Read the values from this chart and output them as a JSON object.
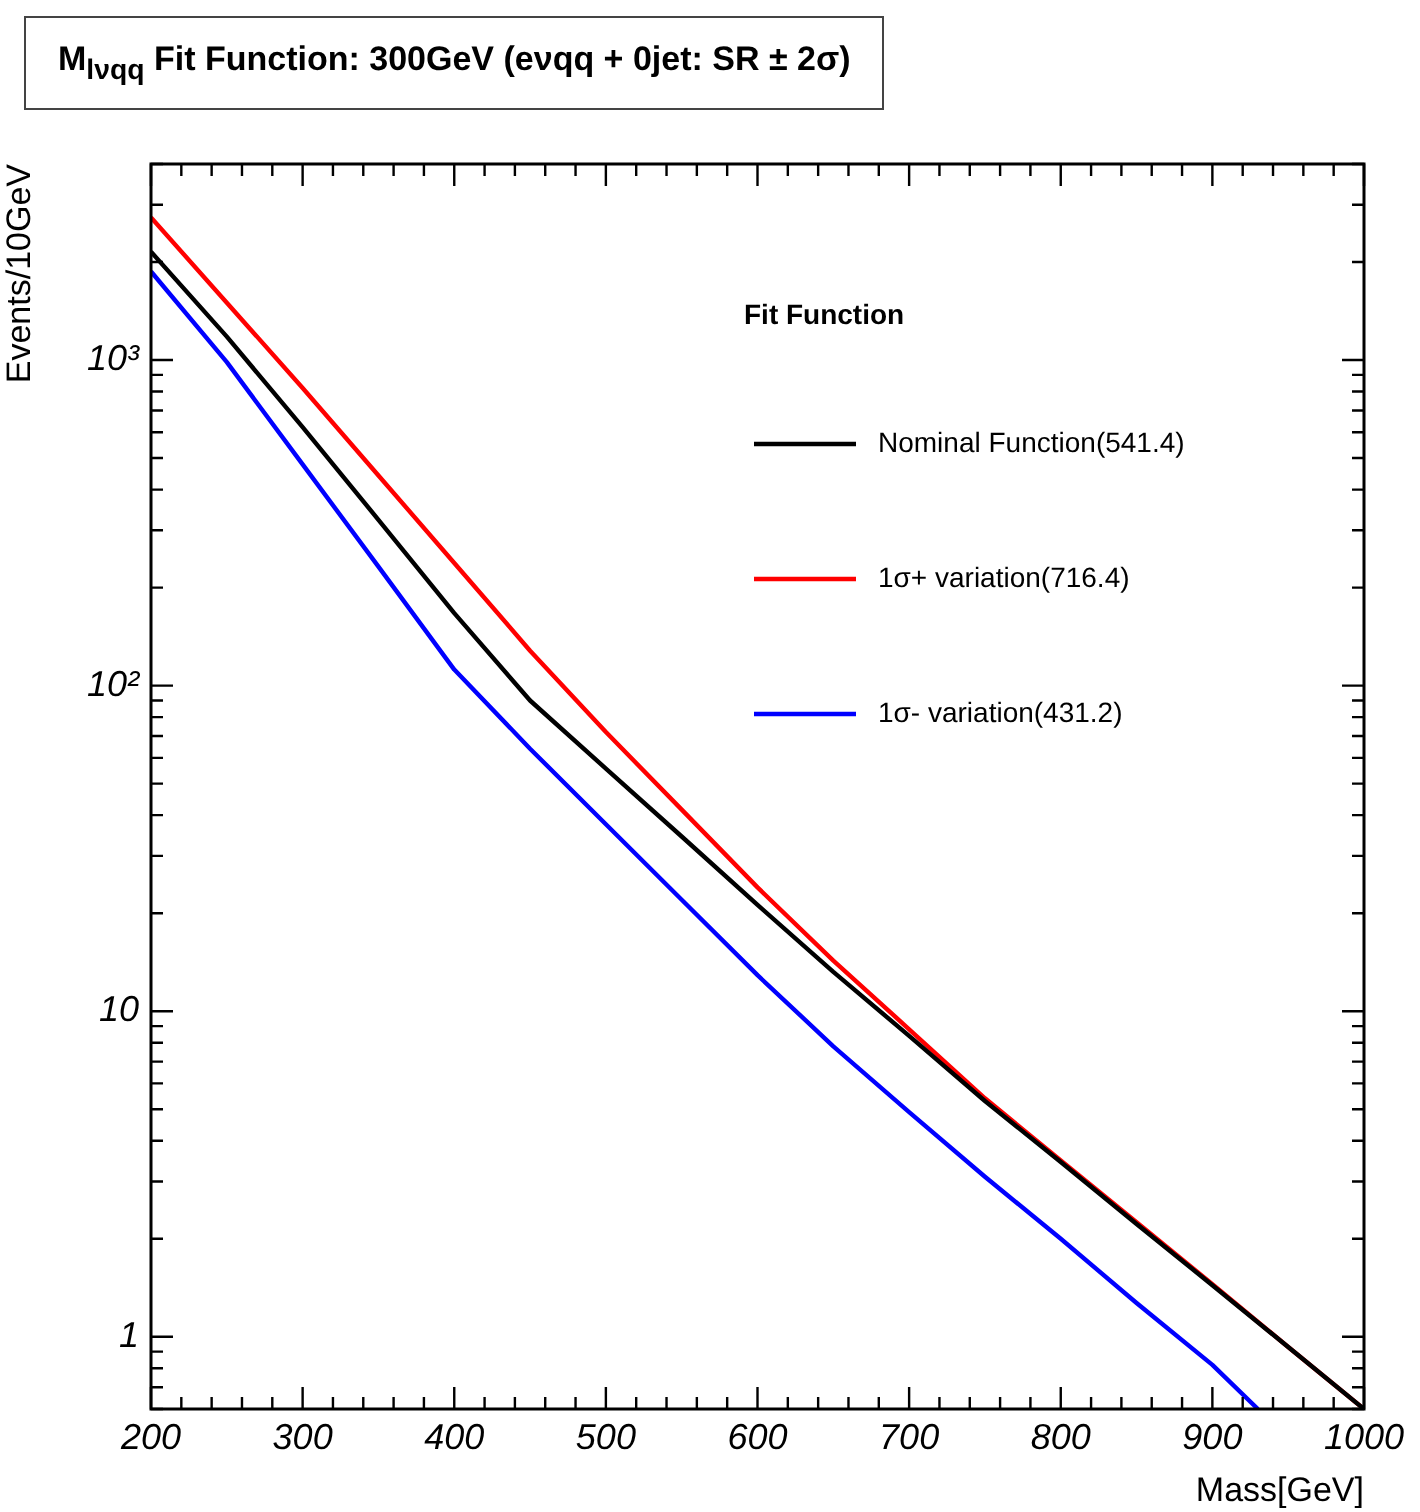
{
  "chart_data": {
    "type": "line",
    "title": "M$_{lνqq}$ Fit Function: 300GeV (eνqq + 0jet: SR ± 2σ)",
    "xlabel": "Mass[GeV]",
    "ylabel": "Events/10GeV",
    "legend_title": "Fit Function",
    "legend": "top right",
    "log": "y",
    "grid": false,
    "marker": "none",
    "line_style": "solid",
    "x": [
      200,
      250,
      300,
      350,
      400,
      450,
      500,
      550,
      600,
      650,
      700,
      750,
      800,
      850,
      900,
      950,
      1000
    ],
    "xlim": [
      200,
      1000
    ],
    "ylim": [
      0.6,
      4000
    ],
    "xticks": [
      200,
      {
        "value": 220,
        "label": null
      },
      {
        "value": 240,
        "label": null
      },
      {
        "value": 260,
        "label": null
      },
      {
        "value": 280,
        "label": null
      },
      300,
      {
        "value": 320,
        "label": null
      },
      {
        "value": 340,
        "label": null
      },
      {
        "value": 360,
        "label": null
      },
      {
        "value": 380,
        "label": null
      },
      400,
      {
        "value": 420,
        "label": null
      },
      {
        "value": 440,
        "label": null
      },
      {
        "value": 460,
        "label": null
      },
      {
        "value": 480,
        "label": null
      },
      500,
      {
        "value": 520,
        "label": null
      },
      {
        "value": 540,
        "label": null
      },
      {
        "value": 560,
        "label": null
      },
      {
        "value": 580,
        "label": null
      },
      600,
      {
        "value": 620,
        "label": null
      },
      {
        "value": 640,
        "label": null
      },
      {
        "value": 660,
        "label": null
      },
      {
        "value": 680,
        "label": null
      },
      700,
      {
        "value": 720,
        "label": null
      },
      {
        "value": 740,
        "label": null
      },
      {
        "value": 760,
        "label": null
      },
      {
        "value": 780,
        "label": null
      },
      800,
      {
        "value": 820,
        "label": null
      },
      {
        "value": 840,
        "label": null
      },
      {
        "value": 860,
        "label": null
      },
      {
        "value": 880,
        "label": null
      },
      900,
      {
        "value": 920,
        "label": null
      },
      {
        "value": 940,
        "label": null
      },
      {
        "value": 960,
        "label": null
      },
      {
        "value": 980,
        "label": null
      },
      1000
    ],
    "yticks": [
      {
        "value": 0.6,
        "label": null
      },
      {
        "value": 0.7,
        "label": null
      },
      {
        "value": 0.8,
        "label": null
      },
      {
        "value": 0.9,
        "label": null
      },
      1,
      {
        "value": 2,
        "label": null
      },
      {
        "value": 3,
        "label": null
      },
      {
        "value": 4,
        "label": null
      },
      {
        "value": 5,
        "label": null
      },
      {
        "value": 6,
        "label": null
      },
      {
        "value": 7,
        "label": null
      },
      {
        "value": 8,
        "label": null
      },
      {
        "value": 9,
        "label": null
      },
      10,
      {
        "value": 20,
        "label": null
      },
      {
        "value": 30,
        "label": null
      },
      {
        "value": 40,
        "label": null
      },
      {
        "value": 50,
        "label": null
      },
      {
        "value": 60,
        "label": null
      },
      {
        "value": 70,
        "label": null
      },
      {
        "value": 80,
        "label": null
      },
      {
        "value": 90,
        "label": null
      },
      {
        "value": 100,
        "label": "10²"
      },
      {
        "value": 200,
        "label": null
      },
      {
        "value": 300,
        "label": null
      },
      {
        "value": 400,
        "label": null
      },
      {
        "value": 500,
        "label": null
      },
      {
        "value": 600,
        "label": null
      },
      {
        "value": 700,
        "label": null
      },
      {
        "value": 800,
        "label": null
      },
      {
        "value": 900,
        "label": null
      },
      {
        "value": 1000,
        "label": "10³"
      },
      {
        "value": 2000,
        "label": null
      },
      {
        "value": 3000,
        "label": null
      },
      {
        "value": 4000,
        "label": null
      }
    ],
    "series": [
      {
        "name": "Nominal Function(541.4)",
        "color": "#000000",
        "values": [
          2150,
          1180,
          622,
          323,
          167,
          90,
          55.6,
          34.4,
          21.2,
          13.2,
          8.4,
          5.3,
          3.44,
          2.22,
          1.44,
          0.93,
          0.6
        ]
      },
      {
        "name": "1σ+ variation(716.4)",
        "color": "#ff0000",
        "values": [
          2740,
          1500,
          820,
          442,
          238,
          128,
          72,
          41.6,
          24,
          14.3,
          8.8,
          5.4,
          3.48,
          2.25,
          1.45,
          0.93,
          0.6
        ]
      },
      {
        "name": "1σ- variation(431.2)",
        "color": "#0000ff",
        "x": [
          200,
          250,
          300,
          350,
          400,
          450,
          500,
          550,
          600,
          650,
          700,
          750,
          800,
          850,
          900,
          930
        ],
        "values": [
          1870,
          985,
          478,
          232,
          112,
          64,
          37.5,
          22,
          12.9,
          7.8,
          4.9,
          3.1,
          2.0,
          1.27,
          0.82,
          0.6
        ]
      }
    ]
  }
}
